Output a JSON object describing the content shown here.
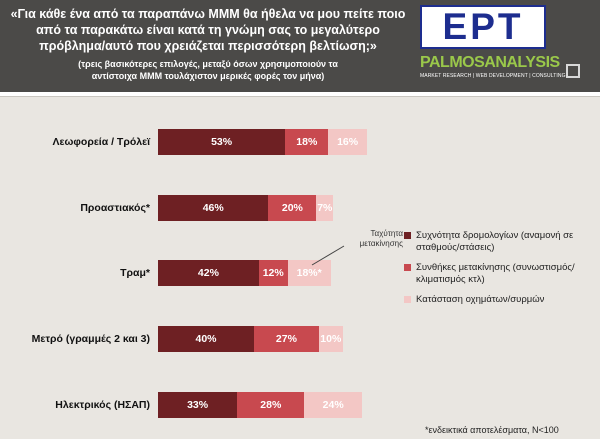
{
  "header": {
    "question": "«Για κάθε ένα από τα παραπάνω ΜΜΜ θα ήθελα να μου πείτε ποιο από τα παρακάτω είναι κατά τη γνώμη σας το μεγαλύτερο πρόβλημα/αυτό που χρειάζεται περισσότερη βελτίωση;»",
    "subtitle": "(τρεις βασικότερες επιλογές, μεταξύ όσων χρησιμοποιούν τα αντίστοιχα ΜΜΜ τουλάχιστον μερικές φορές τον μήνα)"
  },
  "logos": {
    "ert": "ΕΡΤ",
    "palmos_name": "PALMOSANALYSIS",
    "palmos_tagline": "MARKET RESEARCH | WEB DEVELOPMENT | CONSULTING"
  },
  "colors": {
    "series_0": "#6e2023",
    "series_1": "#c8494f",
    "series_2": "#f3c7c5",
    "header_bg": "#4b4a48",
    "chart_bg": "#e9e6e1"
  },
  "chart_data": {
    "type": "bar",
    "orientation": "horizontal",
    "stacked": true,
    "categories": [
      "Λεωφορεία / Τρόλεϊ",
      "Προαστιακός*",
      "Τραμ*",
      "Μετρό (γραμμές 2 και 3)",
      "Ηλεκτρικός (ΗΣΑΠ)"
    ],
    "series": [
      {
        "name": "Συχνότητα δρομολογίων (αναμονή σε σταθμούς/στάσεις)",
        "values": [
          53,
          46,
          42,
          40,
          33
        ],
        "labels": [
          "53%",
          "46%",
          "42%",
          "40%",
          "33%"
        ]
      },
      {
        "name": "Συνθήκες μετακίνησης (συνωστισμός/κλιματισμός κτλ)",
        "values": [
          18,
          20,
          12,
          27,
          28
        ],
        "labels": [
          "18%",
          "20%",
          "12%",
          "27%",
          "28%"
        ]
      },
      {
        "name": "Κατάσταση οχημάτων/συρμών",
        "values": [
          16,
          7,
          18,
          10,
          24
        ],
        "labels": [
          "16%",
          "7%",
          "18%*",
          "10%",
          "24%"
        ]
      }
    ],
    "annotation": {
      "text": "Ταχύτητα μετακίνησης",
      "category": "Τραμ*",
      "series": 2
    },
    "legend_position": "right",
    "footnote": "*ενδεικτικά αποτελέσματα, N<100"
  }
}
